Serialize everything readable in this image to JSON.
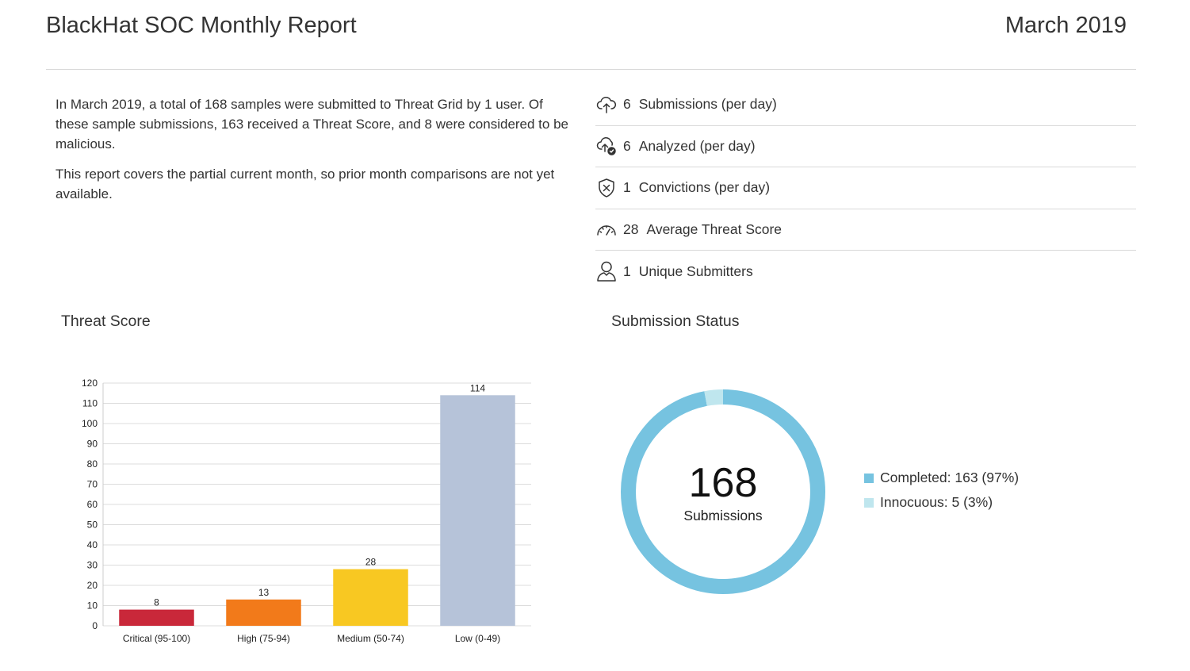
{
  "header": {
    "title": "BlackHat SOC Monthly Report",
    "month": "March 2019"
  },
  "summary": {
    "paragraph1": "In March 2019, a total of 168 samples were submitted to Threat Grid by 1 user. Of these sample submissions, 163 received a Threat Score, and 8 were considered to be malicious.",
    "paragraph2": "This report covers the partial current month, so prior month comparisons are not yet available."
  },
  "stats": [
    {
      "icon": "cloud-upload-icon",
      "value": "6",
      "label": "Submissions (per day)"
    },
    {
      "icon": "cloud-check-icon",
      "value": "6",
      "label": "Analyzed (per day)"
    },
    {
      "icon": "shield-x-icon",
      "value": "1",
      "label": "Convictions (per day)"
    },
    {
      "icon": "speedometer-icon",
      "value": "28",
      "label": "Average Threat Score"
    },
    {
      "icon": "user-icon",
      "value": "1",
      "label": "Unique Submitters"
    }
  ],
  "sections": {
    "threat_score": "Threat Score",
    "submission_status": "Submission Status"
  },
  "chart_data": [
    {
      "type": "bar",
      "categories": [
        "Critical (95-100)",
        "High (75-94)",
        "Medium (50-74)",
        "Low (0-49)"
      ],
      "values": [
        8,
        13,
        28,
        114
      ],
      "colors": [
        "#c9283a",
        "#f27a1a",
        "#f8c822",
        "#b6c3d9"
      ],
      "ylim": [
        0,
        120
      ],
      "yticks": [
        0,
        10,
        20,
        30,
        40,
        50,
        60,
        70,
        80,
        90,
        100,
        110,
        120
      ],
      "grid": true,
      "data_labels": true
    },
    {
      "type": "pie",
      "donut": true,
      "center_value": "168",
      "center_label": "Submissions",
      "slices": [
        {
          "label": "Completed: 163 (97%)",
          "value": 163,
          "color": "#76c3e0"
        },
        {
          "label": "Innocuous: 5 (3%)",
          "value": 5,
          "color": "#bfe6ee"
        }
      ],
      "legend_position": "right"
    }
  ]
}
